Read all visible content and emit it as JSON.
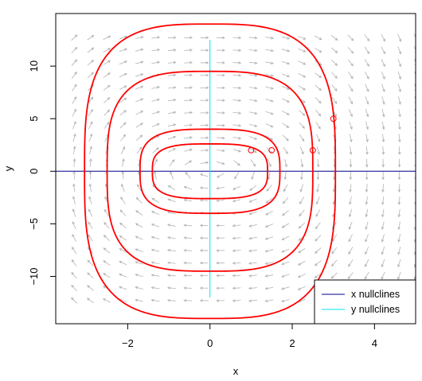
{
  "chart_data": {
    "type": "line",
    "xlabel": "x",
    "ylabel": "y",
    "xlim": [
      -3.75,
      5.0
    ],
    "ylim": [
      -14.5,
      15.0
    ],
    "x_ticks": [
      -2,
      0,
      2,
      4
    ],
    "y_ticks": [
      -10,
      -5,
      0,
      5,
      10
    ],
    "grid": false,
    "legend": {
      "position": "bottom-right",
      "entries": [
        {
          "label": "x nullclines",
          "color": "#00008b"
        },
        {
          "label": "y nullclines",
          "color": "#00e5ee"
        }
      ]
    },
    "nullclines": {
      "x_nullcline": {
        "y": 0,
        "x_range": [
          -3.75,
          5.0
        ],
        "color": "#00008b"
      },
      "y_nullcline": {
        "x": 0,
        "y_range": [
          -12,
          12.5
        ],
        "color": "#00e5ee"
      }
    },
    "initial_points": [
      [
        1,
        2
      ],
      [
        1.5,
        2
      ],
      [
        2.5,
        2
      ],
      [
        3,
        5
      ]
    ],
    "trajectories": [
      {
        "start": [
          1,
          2
        ],
        "x_extent": 1.4,
        "y_extent": 2.6,
        "color": "#ff0000"
      },
      {
        "start": [
          1.5,
          2
        ],
        "x_extent": 1.7,
        "y_extent": 4.0,
        "color": "#ff0000"
      },
      {
        "start": [
          2.5,
          2
        ],
        "x_extent": 2.5,
        "y_extent": 9.5,
        "color": "#ff0000"
      },
      {
        "start": [
          3,
          5
        ],
        "x_extent": 3.05,
        "y_extent": 14.0,
        "color": "#ff0000"
      }
    ],
    "vector_field": {
      "x_range": [
        -3.3,
        5.0
      ],
      "y_range": [
        -12.3,
        12.7
      ],
      "nx": 22,
      "ny": 22,
      "color": "#b3b3b3"
    }
  }
}
